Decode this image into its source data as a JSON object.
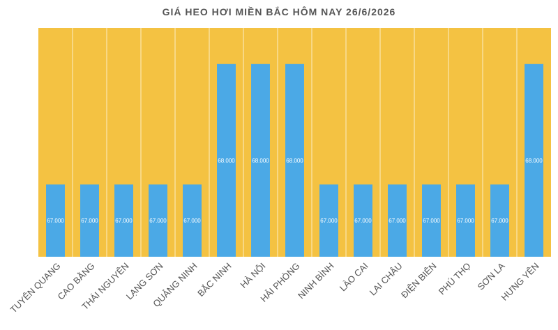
{
  "chart_data": {
    "type": "bar",
    "title": "GIÁ HEO HƠI MIỀN BẮC HÔM NAY 26/6/2026",
    "categories": [
      "TUYÊN QUANG",
      "CAO BẰNG",
      "THÁI NGUYÊN",
      "LẠNG SƠN",
      "QUẢNG NINH",
      "BẮC NINH",
      "HÀ NỘI",
      "HẢI PHÒNG",
      "NINH BÌNH",
      "LÀO CAI",
      "LAI CHÂU",
      "ĐIỆN BIÊN",
      "PHÚ THỌ",
      "SƠN LA",
      "HƯNG YÊN"
    ],
    "values": [
      67000,
      67000,
      67000,
      67000,
      67000,
      68000,
      68000,
      68000,
      67000,
      67000,
      67000,
      67000,
      67000,
      67000,
      68000
    ],
    "value_labels": [
      "67.000",
      "67.000",
      "67.000",
      "67.000",
      "67.000",
      "68.000",
      "68.000",
      "68.000",
      "67.000",
      "67.000",
      "67.000",
      "67.000",
      "67.000",
      "67.000",
      "68.000"
    ],
    "ylim": [
      66400,
      68300
    ],
    "grid": false,
    "legend": "none",
    "colors": {
      "plot_background": "#f4c242",
      "bar": "#4ba9e6",
      "separator": "#ffffff",
      "title": "#555555",
      "category_label": "#555555",
      "value_label": "#ffffff"
    }
  }
}
